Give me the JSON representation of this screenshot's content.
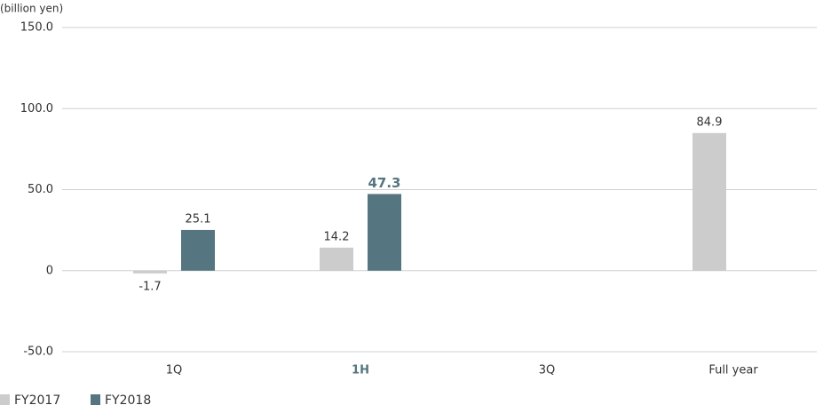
{
  "chart_data": {
    "type": "bar",
    "y_label": "(billion yen)",
    "categories": [
      "1Q",
      "1H",
      "3Q",
      "Full year"
    ],
    "series": [
      {
        "name": "FY2017",
        "color": "#cccccc",
        "values": [
          -1.7,
          14.2,
          null,
          84.9
        ]
      },
      {
        "name": "FY2018",
        "color": "#557580",
        "values": [
          25.1,
          47.3,
          null,
          null
        ]
      }
    ],
    "ylim": [
      -50,
      150
    ],
    "yticks": [
      {
        "value": -50,
        "label": "-50.0"
      },
      0,
      {
        "value": 50,
        "label": "50.0"
      },
      {
        "value": 100,
        "label": "100.0"
      },
      {
        "value": 150,
        "label": "150.0"
      }
    ],
    "grid": true
  }
}
